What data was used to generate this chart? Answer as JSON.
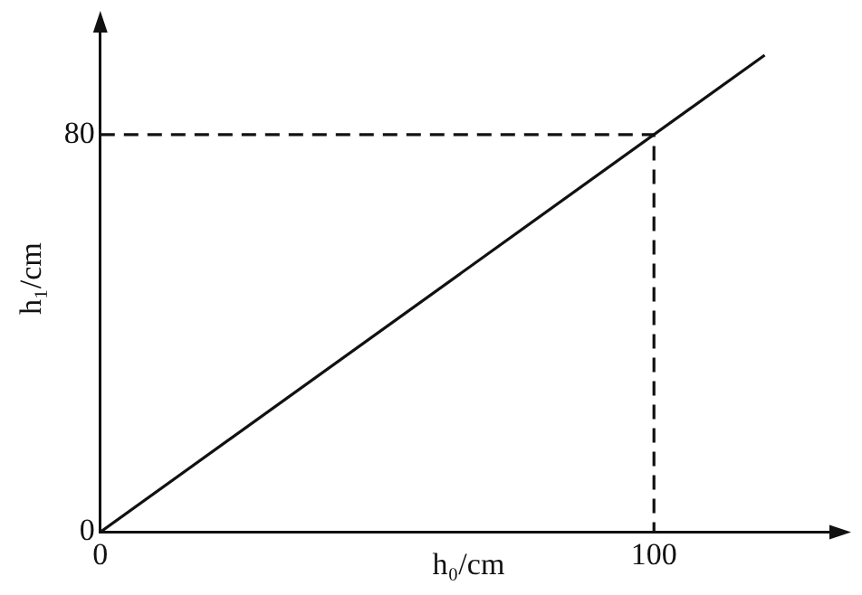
{
  "chart_data": {
    "type": "line",
    "xlabel": "h₀/cm",
    "ylabel": "h₁/cm",
    "xlim": [
      0,
      133
    ],
    "ylim": [
      0,
      102
    ],
    "xticks": [
      0,
      100
    ],
    "yticks": [
      0,
      80
    ],
    "grid": false,
    "legend": false,
    "marker": "none",
    "series": [
      {
        "color": "#111111",
        "x": [
          0,
          120
        ],
        "values": [
          0,
          96
        ],
        "line_style": "solid"
      },
      {
        "color": "#111111",
        "x": [
          0,
          100,
          100
        ],
        "values": [
          80,
          80,
          0
        ],
        "line_style": "dashed"
      }
    ]
  }
}
